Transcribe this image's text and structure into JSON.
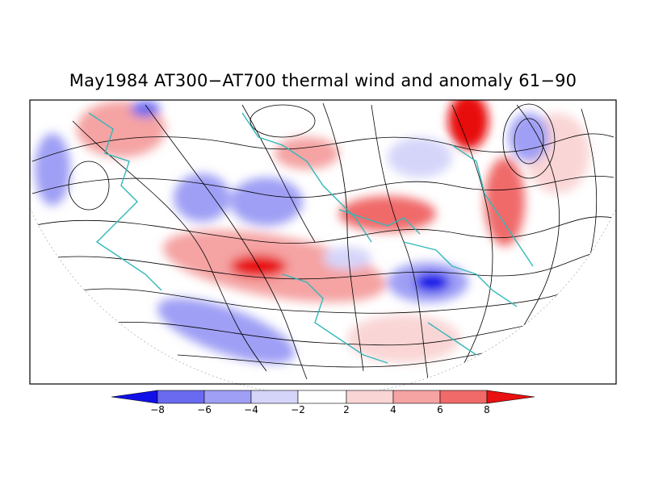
{
  "title": "May1984 AT300−AT700 thermal wind and anomaly 61−90",
  "colorbar": {
    "labels": [
      "−8",
      "−6",
      "−4",
      "−2",
      "2",
      "4",
      "6",
      "8"
    ],
    "colors": [
      "#1010e8",
      "#6a6af0",
      "#9f9ff5",
      "#d5d5fa",
      "#ffffff",
      "#fad5d5",
      "#f5a3a3",
      "#f06a6a",
      "#e81010"
    ]
  },
  "colors": {
    "streamline": "#000000",
    "coastline": "#33b8b8",
    "border": "#000000"
  }
}
